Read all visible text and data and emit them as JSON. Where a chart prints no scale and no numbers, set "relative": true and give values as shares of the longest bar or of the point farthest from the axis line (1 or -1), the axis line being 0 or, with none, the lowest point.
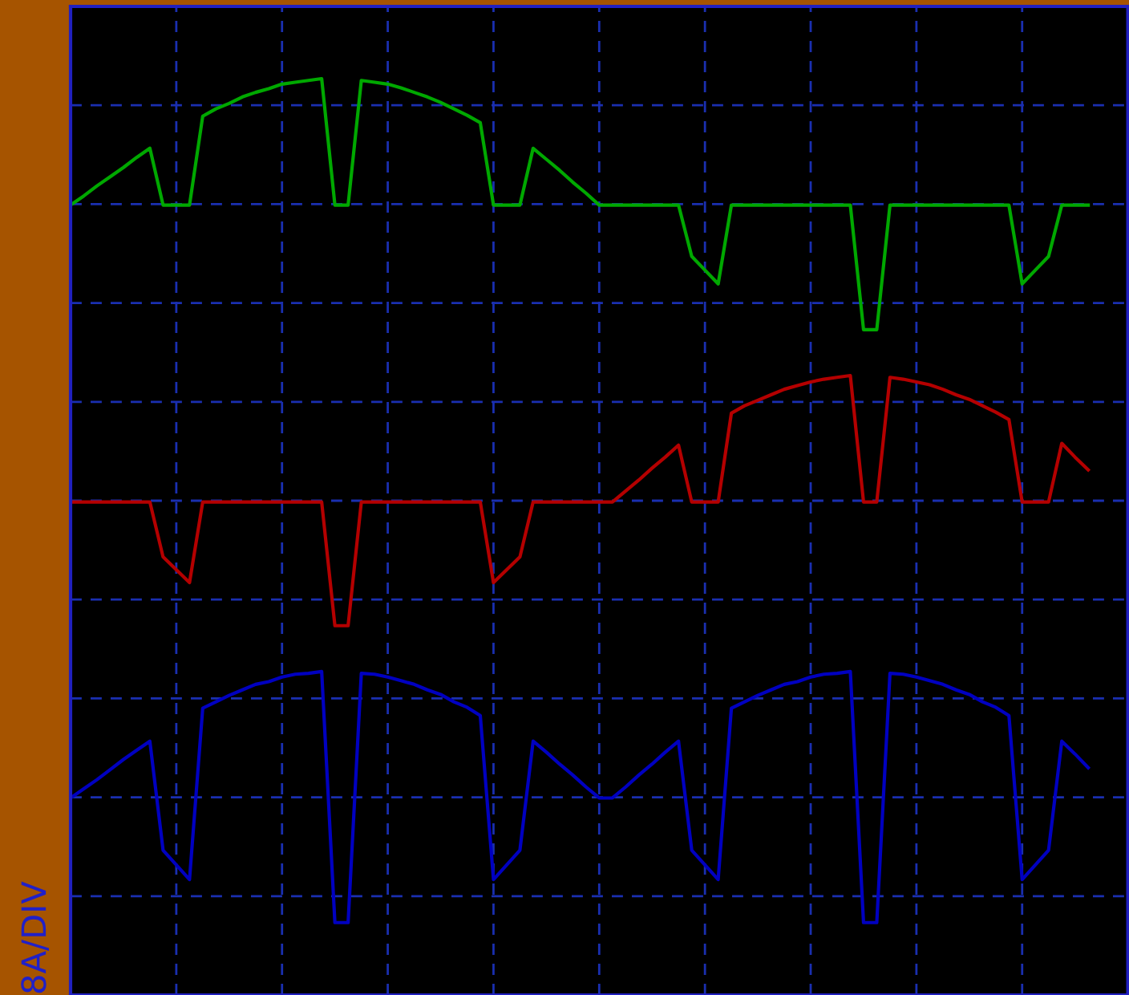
{
  "chart_data": {
    "type": "line",
    "relative": true,
    "ylabel": "8A/DIV",
    "grid": true,
    "categories": [
      null,
      null,
      null,
      null,
      null,
      null,
      null,
      null,
      null,
      null,
      null,
      null,
      null,
      null,
      null,
      null,
      null,
      null,
      null,
      null,
      null,
      null,
      null,
      null,
      null,
      null,
      null,
      null,
      null,
      null,
      null,
      null,
      null,
      null,
      null,
      null,
      null,
      null,
      null,
      null,
      null,
      null,
      null,
      null,
      null,
      null,
      null,
      null,
      null,
      null,
      null,
      null,
      null,
      null,
      null,
      null,
      null,
      null,
      null,
      null,
      null,
      null,
      null,
      null,
      null,
      null,
      null,
      null,
      null,
      null,
      null,
      null,
      null,
      null,
      null,
      null,
      null,
      null
    ],
    "series": [
      {
        "color": "#00a800",
        "values": [
          0.862,
          0.872,
          0.883,
          0.893,
          0.903,
          0.914,
          0.924,
          0.862,
          0.862,
          0.862,
          0.959,
          0.967,
          0.973,
          0.98,
          0.985,
          0.989,
          0.994,
          0.996,
          0.998,
          1.0,
          0.862,
          0.862,
          0.998,
          0.996,
          0.994,
          0.99,
          0.985,
          0.98,
          0.974,
          0.967,
          0.96,
          0.952,
          0.862,
          0.862,
          0.862,
          0.924,
          0.912,
          0.9,
          0.887,
          0.875,
          0.862,
          0.862,
          0.862,
          0.862,
          0.862,
          0.862,
          0.862,
          0.806,
          0.791,
          0.776,
          0.862,
          0.862,
          0.862,
          0.862,
          0.862,
          0.862,
          0.862,
          0.862,
          0.862,
          0.862,
          0.726,
          0.726,
          0.862,
          0.862,
          0.862,
          0.862,
          0.862,
          0.862,
          0.862,
          0.862,
          0.862,
          0.862,
          0.776,
          0.791,
          0.806,
          0.862,
          0.862,
          0.862
        ]
      },
      {
        "color": "#b40000",
        "values": [
          0.538,
          0.538,
          0.538,
          0.538,
          0.538,
          0.538,
          0.538,
          0.478,
          0.464,
          0.45,
          0.538,
          0.538,
          0.538,
          0.538,
          0.538,
          0.538,
          0.538,
          0.538,
          0.538,
          0.538,
          0.403,
          0.403,
          0.538,
          0.538,
          0.538,
          0.538,
          0.538,
          0.538,
          0.538,
          0.538,
          0.538,
          0.538,
          0.45,
          0.464,
          0.478,
          0.538,
          0.538,
          0.538,
          0.538,
          0.538,
          0.538,
          0.538,
          0.55,
          0.562,
          0.575,
          0.587,
          0.6,
          0.538,
          0.538,
          0.538,
          0.635,
          0.643,
          0.649,
          0.655,
          0.661,
          0.665,
          0.669,
          0.672,
          0.674,
          0.676,
          0.538,
          0.538,
          0.674,
          0.672,
          0.669,
          0.666,
          0.661,
          0.655,
          0.65,
          0.643,
          0.636,
          0.628,
          0.538,
          0.538,
          0.538,
          0.602,
          0.587,
          0.573
        ]
      },
      {
        "color": "#0000c0",
        "values": [
          0.215,
          0.225,
          0.235,
          0.246,
          0.257,
          0.267,
          0.277,
          0.158,
          0.142,
          0.126,
          0.313,
          0.32,
          0.327,
          0.333,
          0.339,
          0.342,
          0.347,
          0.35,
          0.351,
          0.353,
          0.079,
          0.079,
          0.351,
          0.35,
          0.347,
          0.343,
          0.339,
          0.333,
          0.328,
          0.32,
          0.314,
          0.305,
          0.126,
          0.142,
          0.158,
          0.277,
          0.265,
          0.252,
          0.24,
          0.227,
          0.215,
          0.215,
          0.227,
          0.24,
          0.252,
          0.265,
          0.277,
          0.158,
          0.142,
          0.126,
          0.313,
          0.32,
          0.327,
          0.333,
          0.339,
          0.342,
          0.347,
          0.35,
          0.351,
          0.353,
          0.079,
          0.079,
          0.351,
          0.35,
          0.347,
          0.343,
          0.339,
          0.333,
          0.328,
          0.32,
          0.314,
          0.305,
          0.126,
          0.142,
          0.158,
          0.277,
          0.263,
          0.248
        ]
      }
    ]
  }
}
